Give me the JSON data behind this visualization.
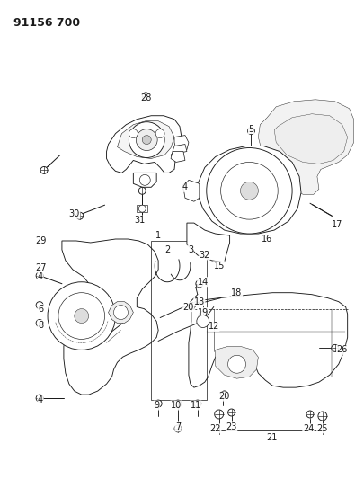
{
  "title": "91156 700",
  "bg_color": "#ffffff",
  "line_color": "#1a1a1a",
  "title_fontsize": 9,
  "label_fontsize": 7,
  "fig_width": 3.95,
  "fig_height": 5.33
}
